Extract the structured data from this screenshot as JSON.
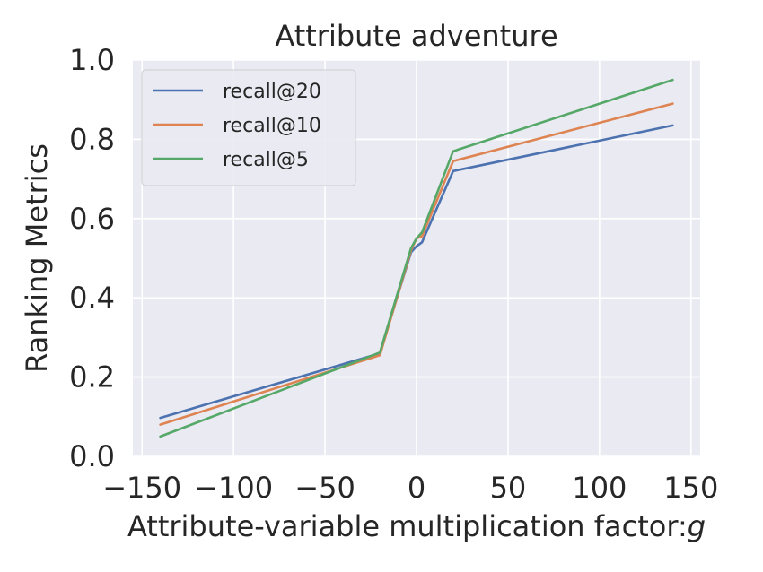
{
  "chart_data": {
    "type": "line",
    "title": "Attribute adventure",
    "xlabel": "Attribute-variable multiplication factor:",
    "xlabel_symbol": "g",
    "ylabel": "Ranking Metrics",
    "xlim": [
      -155,
      155
    ],
    "ylim": [
      0.0,
      1.0
    ],
    "xticks": [
      -150,
      -100,
      -50,
      0,
      50,
      100,
      150
    ],
    "xtick_labels": [
      "−150",
      "−100",
      "−50",
      "0",
      "50",
      "100",
      "150"
    ],
    "yticks": [
      0.0,
      0.2,
      0.4,
      0.6,
      0.8,
      1.0
    ],
    "ytick_labels": [
      "0.0",
      "0.2",
      "0.4",
      "0.6",
      "0.8",
      "1.0"
    ],
    "grid": true,
    "legend_position": "top-left",
    "x": [
      -140,
      -20,
      -3,
      0,
      3,
      20,
      140
    ],
    "series": [
      {
        "name": "recall@20",
        "color": "#4c72b0",
        "values": [
          0.097,
          0.26,
          0.515,
          0.53,
          0.54,
          0.72,
          0.835
        ]
      },
      {
        "name": "recall@10",
        "color": "#dd8452",
        "values": [
          0.08,
          0.255,
          0.52,
          0.55,
          0.555,
          0.745,
          0.89
        ]
      },
      {
        "name": "recall@5",
        "color": "#55a868",
        "values": [
          0.05,
          0.262,
          0.525,
          0.55,
          0.565,
          0.77,
          0.95
        ]
      }
    ]
  }
}
